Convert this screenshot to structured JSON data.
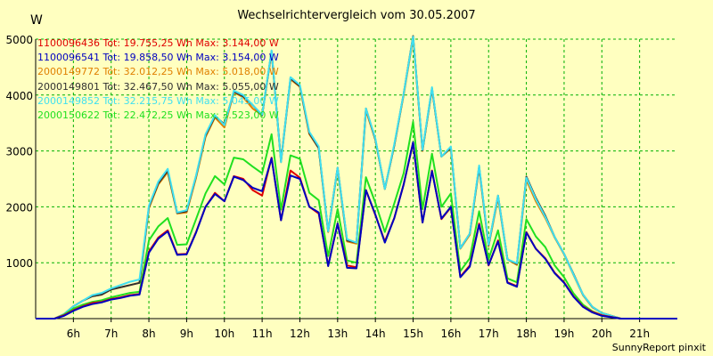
{
  "page": {
    "title": "Wechselrichtervergleich vom 30.05.2007",
    "unit": "W",
    "footer": "SunnyReport pinxit"
  },
  "chart_data": {
    "type": "line",
    "title": "Wechselrichtervergleich vom 30.05.2007",
    "ylabel": "W",
    "ylim": [
      0,
      5000
    ],
    "xlim": [
      5.0,
      22.0
    ],
    "yticks": [
      "1000",
      "2000",
      "3000",
      "4000",
      "5000"
    ],
    "xticks": [
      "6h",
      "7h",
      "8h",
      "9h",
      "10h",
      "11h",
      "12h",
      "13h",
      "14h",
      "15h",
      "16h",
      "17h",
      "18h",
      "19h",
      "20h",
      "21h"
    ],
    "grid": true,
    "background": "#ffffc0",
    "grid_color": "#00b000",
    "legend_position": "top-left",
    "x": [
      5.0,
      5.5,
      5.75,
      6.0,
      6.25,
      6.5,
      6.75,
      7.0,
      7.25,
      7.5,
      7.75,
      8.0,
      8.25,
      8.5,
      8.75,
      9.0,
      9.25,
      9.5,
      9.75,
      10.0,
      10.25,
      10.5,
      10.75,
      11.0,
      11.25,
      11.5,
      11.75,
      12.0,
      12.25,
      12.5,
      12.75,
      13.0,
      13.25,
      13.5,
      13.75,
      14.0,
      14.25,
      14.5,
      14.75,
      15.0,
      15.25,
      15.5,
      15.75,
      16.0,
      16.25,
      16.5,
      16.75,
      17.0,
      17.25,
      17.5,
      17.75,
      18.0,
      18.25,
      18.5,
      18.75,
      19.0,
      19.25,
      19.5,
      19.75,
      20.0,
      20.5,
      21.0,
      21.5,
      22.0
    ],
    "series": [
      {
        "name": "1100096436 Tot: 19.755,25 Wh Max: 3.144,00 W",
        "color": "#e00000",
        "values": [
          0,
          0,
          60,
          150,
          220,
          280,
          300,
          350,
          380,
          420,
          440,
          1200,
          1450,
          1580,
          1150,
          1160,
          1550,
          2000,
          2250,
          2100,
          2550,
          2500,
          2300,
          2200,
          2880,
          1760,
          2650,
          2520,
          2000,
          1880,
          950,
          1700,
          950,
          920,
          2300,
          1850,
          1380,
          1800,
          2400,
          3144,
          1720,
          2650,
          1780,
          1990,
          750,
          950,
          1700,
          950,
          1400,
          650,
          580,
          1550,
          1250,
          1080,
          820,
          650,
          400,
          220,
          120,
          60,
          0,
          0,
          0,
          0
        ]
      },
      {
        "name": "1100096541 Tot: 19.858,50 Wh Max: 3.154,00 W",
        "color": "#0000c0",
        "values": [
          0,
          0,
          50,
          140,
          210,
          260,
          290,
          340,
          370,
          410,
          430,
          1180,
          1430,
          1560,
          1140,
          1150,
          1540,
          2000,
          2230,
          2100,
          2540,
          2480,
          2340,
          2280,
          2870,
          1760,
          2560,
          2500,
          2000,
          1900,
          940,
          1700,
          910,
          900,
          2300,
          1860,
          1360,
          1800,
          2400,
          3154,
          1720,
          2640,
          1790,
          2000,
          740,
          930,
          1680,
          960,
          1380,
          640,
          570,
          1540,
          1250,
          1070,
          810,
          640,
          390,
          210,
          110,
          50,
          0,
          0,
          0,
          0
        ]
      },
      {
        "name": "2000149772 Tot: 32.012,25 Wh Max: 5.018,00 W",
        "color": "#e08000",
        "values": [
          0,
          0,
          80,
          220,
          320,
          400,
          430,
          520,
          560,
          600,
          640,
          1980,
          2400,
          2620,
          1880,
          1900,
          2520,
          3250,
          3600,
          3420,
          4050,
          3960,
          3760,
          3640,
          4780,
          2800,
          4280,
          4150,
          3300,
          3050,
          1550,
          2680,
          1380,
          1340,
          3720,
          3200,
          2320,
          3100,
          4000,
          5018,
          3000,
          4120,
          2900,
          3050,
          1250,
          1500,
          2700,
          1300,
          2160,
          1060,
          960,
          2480,
          2100,
          1800,
          1450,
          1150,
          780,
          420,
          200,
          100,
          0,
          0,
          0,
          0
        ]
      },
      {
        "name": "2000149801 Tot: 32.467,50 Wh Max: 5.055,00 W",
        "color": "#303030",
        "values": [
          0,
          0,
          80,
          220,
          320,
          400,
          430,
          520,
          560,
          600,
          640,
          2000,
          2420,
          2650,
          1890,
          1920,
          2550,
          3280,
          3620,
          3480,
          4060,
          3980,
          3820,
          3640,
          4780,
          2820,
          4300,
          4160,
          3320,
          3050,
          1560,
          2700,
          1400,
          1360,
          3760,
          3200,
          2320,
          3100,
          4020,
          5055,
          3010,
          4120,
          2900,
          3060,
          1260,
          1520,
          2720,
          1310,
          2200,
          1060,
          980,
          2540,
          2160,
          1840,
          1460,
          1160,
          800,
          430,
          210,
          100,
          0,
          0,
          0,
          0
        ]
      },
      {
        "name": "2000149852 Tot: 32.215,75 Wh Max: 5.045,00 W",
        "color": "#40e0f0",
        "values": [
          0,
          0,
          80,
          220,
          320,
          420,
          460,
          540,
          600,
          660,
          700,
          2020,
          2450,
          2680,
          1900,
          1940,
          2560,
          3300,
          3640,
          3460,
          4080,
          4000,
          3820,
          3650,
          4800,
          2800,
          4320,
          4180,
          3340,
          3080,
          1560,
          2700,
          1420,
          1360,
          3760,
          3220,
          2320,
          3120,
          4020,
          5045,
          3020,
          4140,
          2900,
          3080,
          1260,
          1520,
          2740,
          1320,
          2200,
          1060,
          990,
          2520,
          2140,
          1820,
          1460,
          1160,
          790,
          430,
          210,
          100,
          0,
          0,
          0,
          0
        ]
      },
      {
        "name": "2000150622 Tot: 22.472,25 Wh Max: 3.523,00 W",
        "color": "#20e020",
        "values": [
          0,
          0,
          70,
          180,
          250,
          300,
          330,
          380,
          420,
          460,
          480,
          1400,
          1650,
          1800,
          1320,
          1330,
          1780,
          2240,
          2550,
          2400,
          2880,
          2850,
          2720,
          2600,
          3300,
          1950,
          2920,
          2860,
          2250,
          2120,
          1120,
          1960,
          1040,
          1000,
          2530,
          2070,
          1550,
          2060,
          2600,
          3523,
          1960,
          2950,
          2000,
          2240,
          850,
          1080,
          1920,
          1060,
          1580,
          720,
          650,
          1780,
          1470,
          1280,
          950,
          740,
          450,
          250,
          130,
          60,
          0,
          0,
          0,
          0
        ]
      }
    ]
  }
}
